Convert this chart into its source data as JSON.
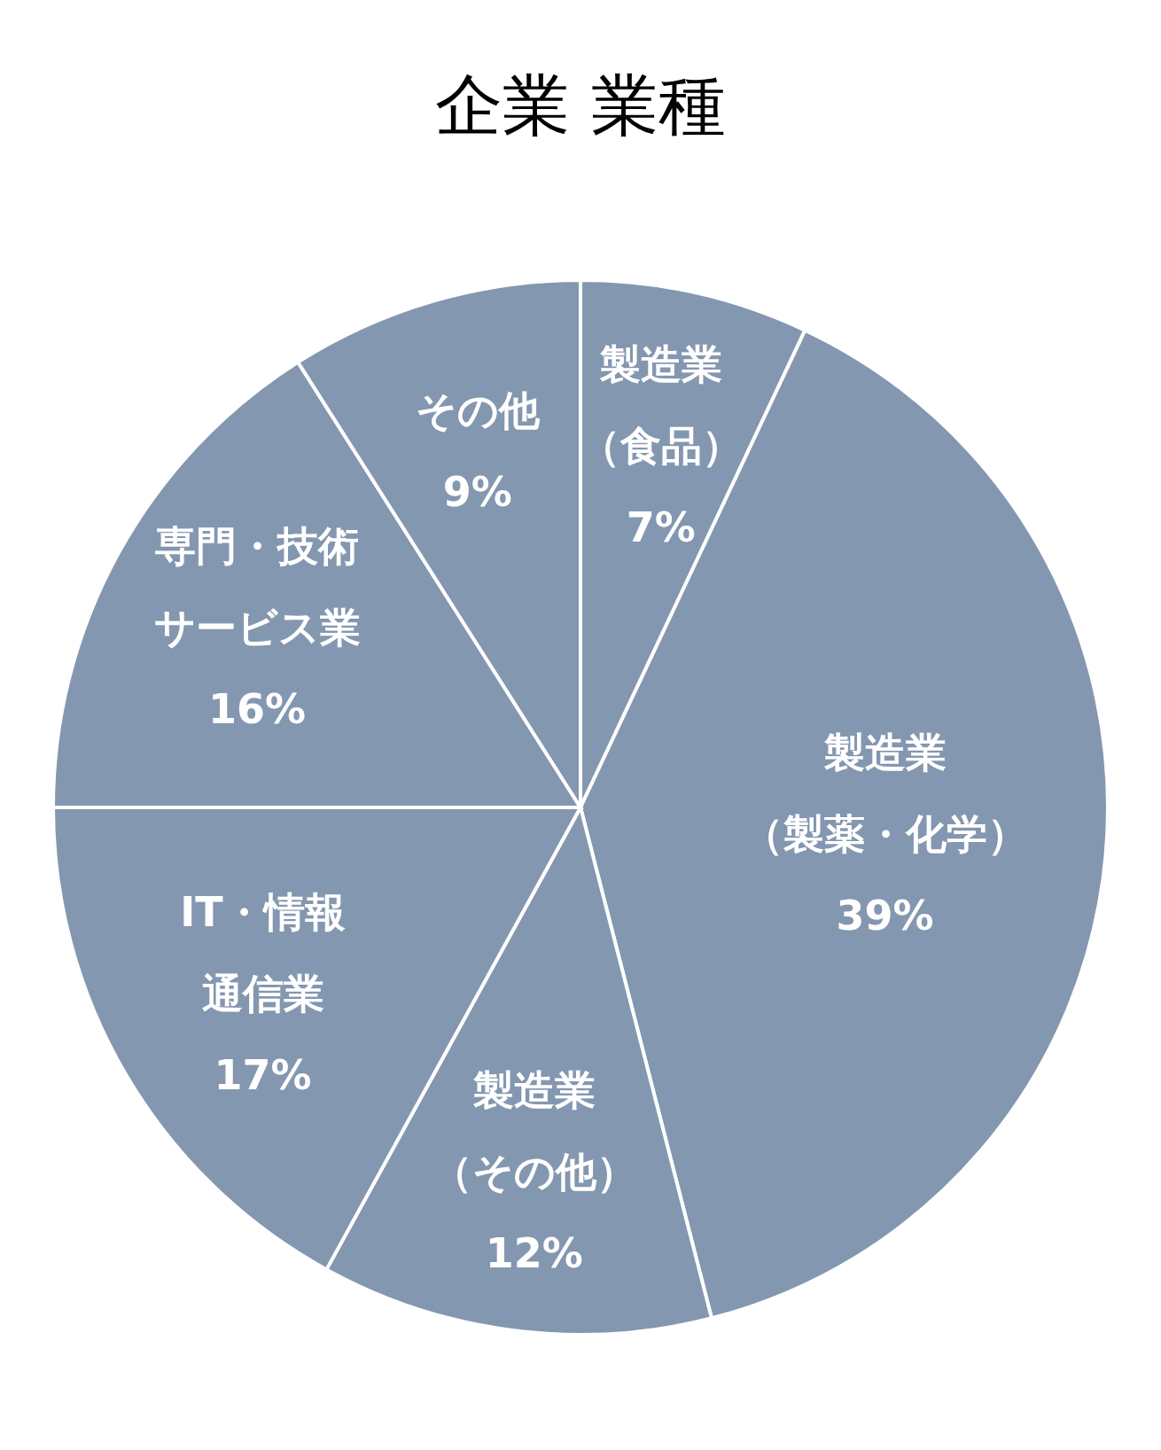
{
  "chart_data": {
    "type": "pie",
    "title": "企業 業種",
    "categories": [
      "製造業（食品）",
      "製造業（製薬・化学）",
      "製造業（その他）",
      "IT・情報通信業",
      "専門・技術サービス業",
      "その他"
    ],
    "values": [
      7,
      39,
      12,
      17,
      16,
      9
    ],
    "value_labels": [
      "7%",
      "39%",
      "12%",
      "17%",
      "16%",
      "9%"
    ],
    "colors": [
      "#8497b0",
      "#8497b0",
      "#8497b0",
      "#8497b0",
      "#8497b0",
      "#8497b0"
    ]
  }
}
